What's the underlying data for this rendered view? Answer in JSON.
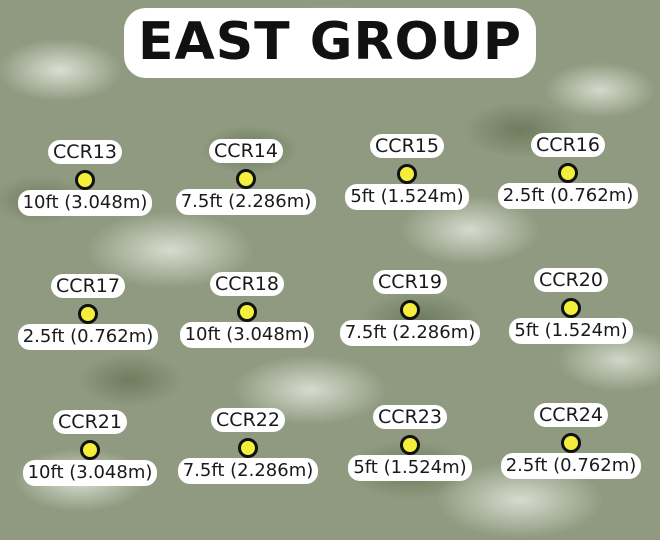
{
  "title": "EAST GROUP",
  "colors": {
    "marker_fill": "#f4ef3a",
    "marker_outline": "#111111",
    "label_bg": "#ffffff"
  },
  "markers": [
    {
      "name": "CCR13",
      "distance": "10ft (3.048m)"
    },
    {
      "name": "CCR14",
      "distance": "7.5ft (2.286m)"
    },
    {
      "name": "CCR15",
      "distance": "5ft (1.524m)"
    },
    {
      "name": "CCR16",
      "distance": "2.5ft (0.762m)"
    },
    {
      "name": "CCR17",
      "distance": "2.5ft (0.762m)"
    },
    {
      "name": "CCR18",
      "distance": "10ft (3.048m)"
    },
    {
      "name": "CCR19",
      "distance": "7.5ft (2.286m)"
    },
    {
      "name": "CCR20",
      "distance": "5ft (1.524m)"
    },
    {
      "name": "CCR21",
      "distance": "10ft (3.048m)"
    },
    {
      "name": "CCR22",
      "distance": "7.5ft (2.286m)"
    },
    {
      "name": "CCR23",
      "distance": "5ft (1.524m)"
    },
    {
      "name": "CCR24",
      "distance": "2.5ft (0.762m)"
    }
  ]
}
